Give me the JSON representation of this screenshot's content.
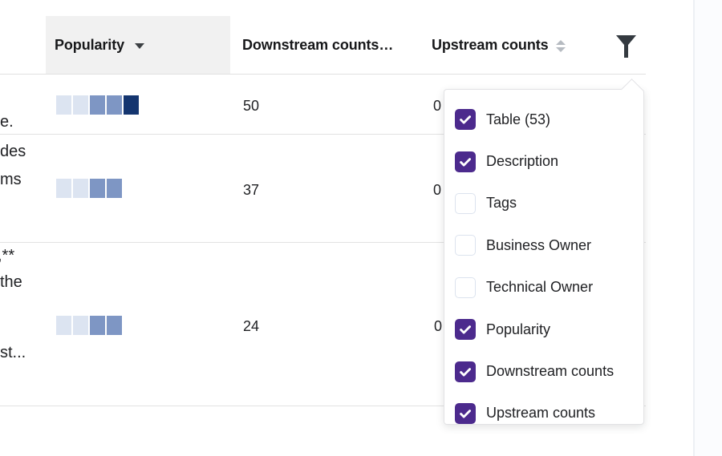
{
  "table": {
    "header": {
      "popularity_label": "Popularity",
      "downstream_label": "Downstream counts…",
      "upstream_label": "Upstream counts"
    },
    "rows": [
      {
        "fragments": [
          "e."
        ],
        "popularity": [
          1,
          1,
          2,
          2,
          3
        ],
        "downstream": "50",
        "upstream": "0"
      },
      {
        "fragments": [
          "des",
          "ms"
        ],
        "popularity": [
          1,
          1,
          2,
          2
        ],
        "downstream": "37",
        "upstream": "0"
      },
      {
        "fragments": [
          ",**",
          "the",
          "st..."
        ],
        "popularity": [
          1,
          1,
          2,
          2
        ],
        "downstream": "24",
        "upstream": "0"
      }
    ]
  },
  "filter_menu": {
    "items": [
      {
        "label": "Table (53)",
        "checked": true
      },
      {
        "label": "Description",
        "checked": true
      },
      {
        "label": "Tags",
        "checked": false
      },
      {
        "label": "Business Owner",
        "checked": false
      },
      {
        "label": "Technical Owner",
        "checked": false
      },
      {
        "label": "Popularity",
        "checked": true
      },
      {
        "label": "Downstream counts",
        "checked": true
      },
      {
        "label": "Upstream counts",
        "checked": true
      }
    ]
  },
  "icons": {
    "filter": "funnel-icon",
    "sort_desc": "triangle-down-icon",
    "sort_both": "sort-arrows-icon",
    "check": "checkmark-icon"
  },
  "colors": {
    "accent_purple": "#4c2a8d",
    "popularity_low": "#dce4f1",
    "popularity_mid": "#7e96c4",
    "popularity_high": "#14356f",
    "header_cell_bg": "#f1f1f1",
    "divider": "#e2e2e2",
    "icon_dark": "#343a40",
    "sort_icon_gray": "#b6bbc1"
  }
}
